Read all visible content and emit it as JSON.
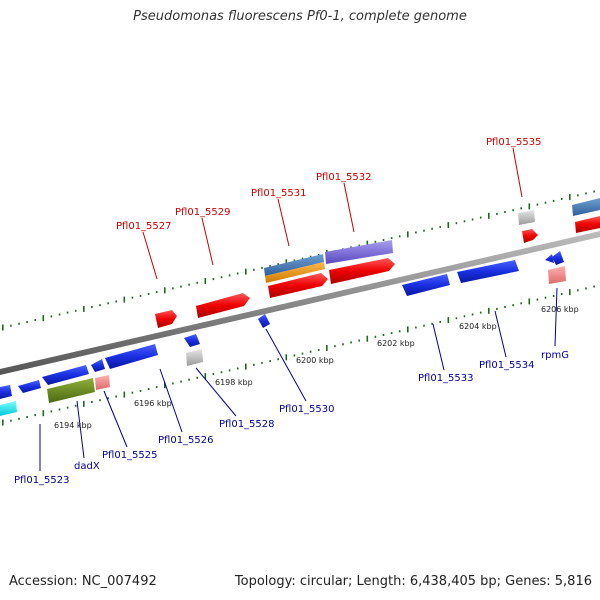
{
  "title": "Pseudomonas fluorescens Pf0-1, complete genome",
  "footer": {
    "accession": "Accession: NC_007492",
    "summary": "Topology: circular; Length: 6,438,405 bp; Genes: 5,816"
  },
  "colors": {
    "forward_label": "#cc0000",
    "reverse_label": "#000099",
    "backbone": "#8a8a8a",
    "tick": "#1a6b1a"
  },
  "scale_labels": [
    "6194 kbp",
    "6196 kbp",
    "6198 kbp",
    "6200 kbp",
    "6202 kbp",
    "6204 kbp",
    "6206 kbp"
  ],
  "forward_genes": [
    "Pfl01_5527",
    "Pfl01_5529",
    "Pfl01_5531",
    "Pfl01_5532",
    "Pfl01_5535"
  ],
  "reverse_genes": [
    "Pfl01_5523",
    "dadX",
    "Pfl01_5525",
    "Pfl01_5526",
    "Pfl01_5528",
    "Pfl01_5530",
    "Pfl01_5533",
    "Pfl01_5534",
    "rpmG"
  ]
}
